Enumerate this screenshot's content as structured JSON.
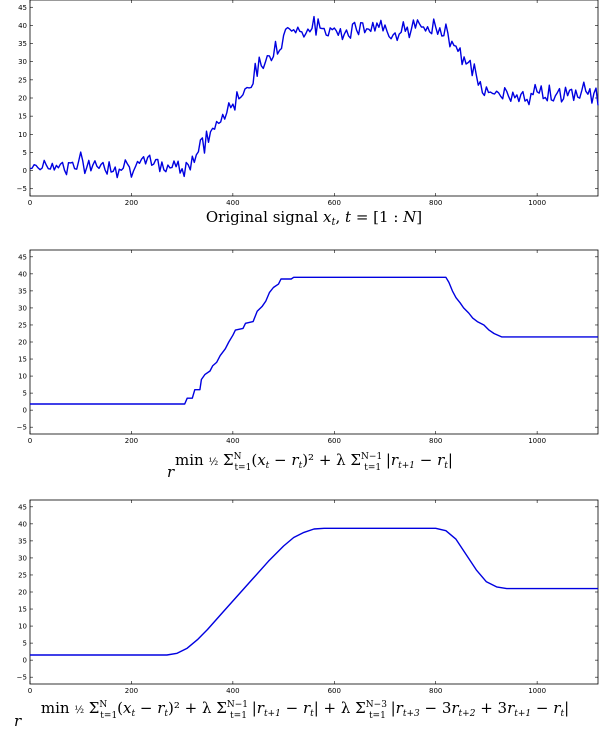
{
  "chart_data": [
    {
      "type": "line",
      "xlim": [
        0,
        1120
      ],
      "ylim": [
        -7,
        47
      ],
      "xticks": [
        0,
        200,
        400,
        600,
        800,
        1000
      ],
      "yticks": [
        -5,
        0,
        5,
        10,
        15,
        20,
        25,
        30,
        35,
        40,
        45
      ],
      "xlabel": "Original signal x_t, t = [1 : N]",
      "description": "noisy piecewise-linear signal",
      "series": [
        {
          "shape_knots": [
            [
              0,
              1.5
            ],
            [
              310,
              1.5
            ],
            [
              510,
              39
            ],
            [
              820,
              39
            ],
            [
              900,
              21
            ],
            [
              1120,
              21
            ]
          ],
          "noise_amplitude": 2.2
        }
      ]
    },
    {
      "type": "line",
      "xlim": [
        0,
        1120
      ],
      "ylim": [
        -7,
        47
      ],
      "xticks": [
        0,
        200,
        400,
        600,
        800,
        1000
      ],
      "yticks": [
        -5,
        0,
        5,
        10,
        15,
        20,
        25,
        30,
        35,
        40,
        45
      ],
      "xlabel": "min_r ½ Σ_{t=1}^{N} (x_t − r_t)² + λ Σ_{t=1}^{N−1} |r_{t+1} − r_t|",
      "series": [
        {
          "points": [
            [
              0,
              1.8
            ],
            [
              305,
              1.8
            ],
            [
              310,
              3.5
            ],
            [
              320,
              3.5
            ],
            [
              325,
              6
            ],
            [
              335,
              6
            ],
            [
              338,
              9
            ],
            [
              345,
              10.5
            ],
            [
              355,
              11.5
            ],
            [
              360,
              13
            ],
            [
              368,
              14
            ],
            [
              375,
              16
            ],
            [
              385,
              18
            ],
            [
              392,
              20
            ],
            [
              400,
              22
            ],
            [
              405,
              23.5
            ],
            [
              420,
              24
            ],
            [
              425,
              25.5
            ],
            [
              440,
              26
            ],
            [
              448,
              29
            ],
            [
              458,
              30.5
            ],
            [
              465,
              32
            ],
            [
              472,
              34.5
            ],
            [
              480,
              36
            ],
            [
              490,
              37
            ],
            [
              495,
              38.5
            ],
            [
              515,
              38.5
            ],
            [
              520,
              39
            ],
            [
              820,
              39
            ],
            [
              826,
              37.5
            ],
            [
              833,
              35
            ],
            [
              840,
              33
            ],
            [
              848,
              31.5
            ],
            [
              855,
              30
            ],
            [
              865,
              28.5
            ],
            [
              873,
              27
            ],
            [
              882,
              26
            ],
            [
              895,
              25
            ],
            [
              905,
              23.5
            ],
            [
              915,
              22.5
            ],
            [
              930,
              21.5
            ],
            [
              1120,
              21.5
            ]
          ]
        }
      ]
    },
    {
      "type": "line",
      "xlim": [
        0,
        1120
      ],
      "ylim": [
        -7,
        47
      ],
      "xticks": [
        0,
        200,
        400,
        600,
        800,
        1000
      ],
      "yticks": [
        -5,
        0,
        5,
        10,
        15,
        20,
        25,
        30,
        35,
        40,
        45
      ],
      "xlabel": "min_r ½ Σ_{t=1}^{N} (x_t − r_t)² + λ Σ_{t=1}^{N−1} |r_{t+1} − r_t| + λ Σ_{t=1}^{N−3} |r_{t+3} − 3r_{t+2} + 3r_{t+1} − r_t|",
      "series": [
        {
          "points": [
            [
              0,
              1.5
            ],
            [
              270,
              1.5
            ],
            [
              290,
              2
            ],
            [
              310,
              3.5
            ],
            [
              330,
              6
            ],
            [
              350,
              9
            ],
            [
              380,
              14
            ],
            [
              410,
              19
            ],
            [
              440,
              24
            ],
            [
              470,
              29
            ],
            [
              500,
              33.5
            ],
            [
              520,
              36
            ],
            [
              540,
              37.5
            ],
            [
              560,
              38.5
            ],
            [
              580,
              38.7
            ],
            [
              800,
              38.7
            ],
            [
              820,
              38
            ],
            [
              840,
              35.5
            ],
            [
              860,
              31
            ],
            [
              880,
              26.5
            ],
            [
              900,
              23
            ],
            [
              920,
              21.5
            ],
            [
              940,
              21
            ],
            [
              1120,
              21
            ]
          ]
        }
      ]
    }
  ]
}
